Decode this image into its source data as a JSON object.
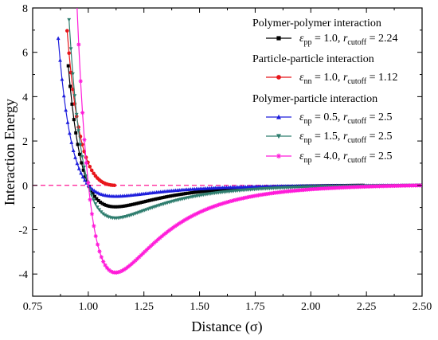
{
  "chart_data": {
    "type": "line",
    "xlabel": "Distance (σ)",
    "ylabel": "Interaction Energy",
    "xlim": [
      0.75,
      2.5
    ],
    "ylim": [
      -5,
      8
    ],
    "x_ticks": [
      0.75,
      1.0,
      1.25,
      1.5,
      1.75,
      2.0,
      2.25,
      2.5
    ],
    "x_tick_labels": [
      "0.75",
      "1.00",
      "1.25",
      "1.50",
      "1.75",
      "2.00",
      "2.25",
      "2.50"
    ],
    "y_ticks": [
      -4,
      -2,
      0,
      2,
      4,
      6,
      8
    ],
    "y_tick_labels": [
      "-4",
      "-2",
      "0",
      "2",
      "4",
      "6",
      "8"
    ],
    "grid": false,
    "legend_position": "top-right",
    "zero_line": {
      "y": 0,
      "color": "#ff1493",
      "style": "dashed"
    },
    "legend_groups": [
      {
        "title": "Polymer-polymer interaction",
        "series_index": [
          0
        ]
      },
      {
        "title": "Particle-particle interaction",
        "series_index": [
          1
        ]
      },
      {
        "title": "Polymer-particle interaction",
        "series_index": [
          2,
          3,
          4
        ]
      }
    ],
    "series": [
      {
        "eps_sub": "pp",
        "eps": "1.0",
        "rc": "2.24",
        "epsilon": 1.0,
        "sigma": 1.0,
        "rcut": 2.24,
        "x_start": 0.91,
        "color": "#000000",
        "marker": "square"
      },
      {
        "eps_sub": "nn",
        "eps": "1.0",
        "rc": "1.12",
        "epsilon": 1.0,
        "sigma": 1.0,
        "rcut": 1.12,
        "x_start": 0.905,
        "color": "#e8161b",
        "marker": "circle"
      },
      {
        "eps_sub": "np",
        "eps": "0.5",
        "rc": "2.5",
        "epsilon": 0.5,
        "sigma": 1.0,
        "rcut": 2.5,
        "x_start": 0.865,
        "color": "#1e1edc",
        "marker": "triangle-up"
      },
      {
        "eps_sub": "np",
        "eps": "1.5",
        "rc": "2.5",
        "epsilon": 1.5,
        "sigma": 1.0,
        "rcut": 2.5,
        "x_start": 0.905,
        "color": "#2e7d6e",
        "marker": "triangle-down"
      },
      {
        "eps_sub": "np",
        "eps": "4.0",
        "rc": "2.5",
        "epsilon": 4.0,
        "sigma": 1.0,
        "rcut": 2.5,
        "x_start": 0.94,
        "color": "#ff1ad9",
        "marker": "star"
      }
    ],
    "legend_text": {
      "epsilon_symbol": "ε",
      "r_symbol": "r",
      "cutoff_sub": "cutoff",
      "equals": " = ",
      "sep": ", "
    }
  }
}
